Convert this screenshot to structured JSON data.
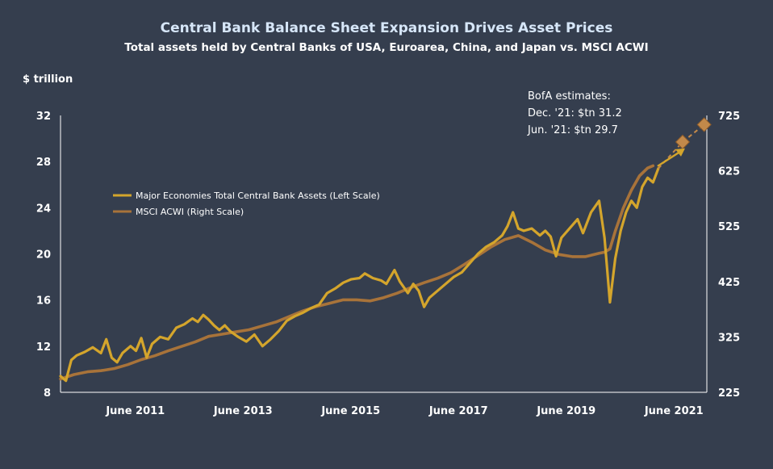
{
  "chart_data": {
    "type": "line",
    "title": "Central Bank Balance Sheet Expansion Drives Asset Prices",
    "subtitle": "Total assets held by Central Banks of USA, Euroarea, China, and Japan vs. MSCI ACWI",
    "ylabel_left": "$ trillion",
    "ylim_left": [
      8,
      32
    ],
    "yticks_left": [
      "8",
      "12",
      "16",
      "20",
      "24",
      "28",
      "32"
    ],
    "ylim_right": [
      225,
      725
    ],
    "yticks_right": [
      "225",
      "325",
      "425",
      "525",
      "625",
      "725"
    ],
    "xlim": [
      2010.0,
      2022.0
    ],
    "xticks": [
      {
        "x": 2011.45,
        "label": "June 2011"
      },
      {
        "x": 2013.45,
        "label": "June 2013"
      },
      {
        "x": 2015.45,
        "label": "June 2015"
      },
      {
        "x": 2017.45,
        "label": "June 2017"
      },
      {
        "x": 2019.45,
        "label": "June 2019"
      },
      {
        "x": 2021.45,
        "label": "June 2021"
      }
    ],
    "legend": {
      "placement": "upper-left",
      "entries": [
        {
          "label": "Major Economies Total Central Bank Assets (Left Scale)",
          "color": "#d4a52c"
        },
        {
          "label": "MSCI ACWI (Right Scale)",
          "color": "#a8733a"
        }
      ]
    },
    "series": [
      {
        "name": "Major Economies Total Central Bank Assets (Left Scale)",
        "axis": "left",
        "color": "#d4a52c",
        "points": [
          [
            2010.0,
            9.4
          ],
          [
            2010.1,
            9.0
          ],
          [
            2010.2,
            10.8
          ],
          [
            2010.3,
            11.2
          ],
          [
            2010.45,
            11.5
          ],
          [
            2010.6,
            11.9
          ],
          [
            2010.75,
            11.4
          ],
          [
            2010.85,
            12.6
          ],
          [
            2010.95,
            11.0
          ],
          [
            2011.05,
            10.6
          ],
          [
            2011.15,
            11.4
          ],
          [
            2011.3,
            12.0
          ],
          [
            2011.4,
            11.6
          ],
          [
            2011.5,
            12.7
          ],
          [
            2011.6,
            11.0
          ],
          [
            2011.7,
            12.2
          ],
          [
            2011.85,
            12.8
          ],
          [
            2012.0,
            12.6
          ],
          [
            2012.15,
            13.6
          ],
          [
            2012.3,
            13.9
          ],
          [
            2012.45,
            14.4
          ],
          [
            2012.55,
            14.1
          ],
          [
            2012.65,
            14.7
          ],
          [
            2012.75,
            14.3
          ],
          [
            2012.85,
            13.8
          ],
          [
            2012.95,
            13.4
          ],
          [
            2013.05,
            13.8
          ],
          [
            2013.15,
            13.3
          ],
          [
            2013.3,
            12.8
          ],
          [
            2013.45,
            12.4
          ],
          [
            2013.6,
            13.0
          ],
          [
            2013.75,
            12.0
          ],
          [
            2013.9,
            12.6
          ],
          [
            2014.05,
            13.3
          ],
          [
            2014.2,
            14.2
          ],
          [
            2014.35,
            14.6
          ],
          [
            2014.5,
            14.9
          ],
          [
            2014.65,
            15.3
          ],
          [
            2014.8,
            15.6
          ],
          [
            2014.95,
            16.6
          ],
          [
            2015.1,
            17.0
          ],
          [
            2015.25,
            17.5
          ],
          [
            2015.4,
            17.8
          ],
          [
            2015.55,
            17.9
          ],
          [
            2015.65,
            18.3
          ],
          [
            2015.8,
            17.9
          ],
          [
            2015.95,
            17.7
          ],
          [
            2016.05,
            17.4
          ],
          [
            2016.2,
            18.6
          ],
          [
            2016.3,
            17.6
          ],
          [
            2016.45,
            16.6
          ],
          [
            2016.55,
            17.4
          ],
          [
            2016.65,
            16.8
          ],
          [
            2016.75,
            15.4
          ],
          [
            2016.85,
            16.2
          ],
          [
            2017.0,
            16.8
          ],
          [
            2017.15,
            17.4
          ],
          [
            2017.3,
            18.0
          ],
          [
            2017.45,
            18.4
          ],
          [
            2017.6,
            19.2
          ],
          [
            2017.75,
            20.0
          ],
          [
            2017.9,
            20.6
          ],
          [
            2018.05,
            21.0
          ],
          [
            2018.2,
            21.6
          ],
          [
            2018.3,
            22.4
          ],
          [
            2018.4,
            23.6
          ],
          [
            2018.5,
            22.2
          ],
          [
            2018.6,
            22.0
          ],
          [
            2018.75,
            22.2
          ],
          [
            2018.9,
            21.6
          ],
          [
            2019.0,
            22.0
          ],
          [
            2019.1,
            21.5
          ],
          [
            2019.2,
            19.8
          ],
          [
            2019.3,
            21.4
          ],
          [
            2019.45,
            22.2
          ],
          [
            2019.6,
            23.0
          ],
          [
            2019.7,
            21.8
          ],
          [
            2019.85,
            23.6
          ],
          [
            2020.0,
            24.6
          ],
          [
            2020.1,
            21.4
          ],
          [
            2020.2,
            15.8
          ],
          [
            2020.3,
            19.6
          ],
          [
            2020.4,
            22.0
          ],
          [
            2020.5,
            23.6
          ],
          [
            2020.6,
            24.6
          ],
          [
            2020.7,
            24.0
          ],
          [
            2020.8,
            25.8
          ],
          [
            2020.9,
            26.6
          ],
          [
            2021.0,
            26.2
          ],
          [
            2021.1,
            27.4
          ]
        ]
      },
      {
        "name": "MSCI ACWI (Right Scale)",
        "axis": "right",
        "color": "#a8733a",
        "points": [
          [
            2010.0,
            249
          ],
          [
            2010.25,
            257
          ],
          [
            2010.5,
            262
          ],
          [
            2010.75,
            264
          ],
          [
            2011.0,
            268
          ],
          [
            2011.25,
            275
          ],
          [
            2011.5,
            284
          ],
          [
            2011.75,
            291
          ],
          [
            2012.0,
            300
          ],
          [
            2012.25,
            308
          ],
          [
            2012.5,
            316
          ],
          [
            2012.75,
            326
          ],
          [
            2013.0,
            330
          ],
          [
            2013.25,
            334
          ],
          [
            2013.5,
            338
          ],
          [
            2013.75,
            345
          ],
          [
            2014.0,
            352
          ],
          [
            2014.25,
            362
          ],
          [
            2014.5,
            372
          ],
          [
            2014.75,
            380
          ],
          [
            2015.0,
            386
          ],
          [
            2015.25,
            392
          ],
          [
            2015.5,
            392
          ],
          [
            2015.75,
            390
          ],
          [
            2016.0,
            396
          ],
          [
            2016.25,
            404
          ],
          [
            2016.5,
            414
          ],
          [
            2016.75,
            423
          ],
          [
            2017.0,
            431
          ],
          [
            2017.25,
            441
          ],
          [
            2017.5,
            456
          ],
          [
            2017.75,
            472
          ],
          [
            2018.0,
            488
          ],
          [
            2018.25,
            501
          ],
          [
            2018.5,
            508
          ],
          [
            2018.75,
            496
          ],
          [
            2019.0,
            482
          ],
          [
            2019.25,
            474
          ],
          [
            2019.5,
            470
          ],
          [
            2019.75,
            470
          ],
          [
            2020.0,
            476
          ],
          [
            2020.1,
            478
          ],
          [
            2020.2,
            484
          ],
          [
            2020.3,
            516
          ],
          [
            2020.45,
            558
          ],
          [
            2020.6,
            590
          ],
          [
            2020.75,
            616
          ],
          [
            2020.9,
            630
          ],
          [
            2021.0,
            634
          ]
        ]
      }
    ],
    "projection": {
      "series": "Major Economies Total Central Bank Assets (Left Scale)",
      "style": "dashed",
      "points": [
        [
          2021.1,
          27.4
        ],
        [
          2021.55,
          29.7
        ],
        [
          2021.95,
          31.2
        ]
      ],
      "markers": [
        [
          2021.55,
          29.7
        ],
        [
          2021.95,
          31.2
        ]
      ]
    },
    "annotation": {
      "lines": [
        "BofA estimates:",
        "Dec. '21: $tn 31.2",
        "Jun. '21: $tn 29.7"
      ],
      "arrow_target": [
        2021.55,
        29.7
      ]
    }
  }
}
